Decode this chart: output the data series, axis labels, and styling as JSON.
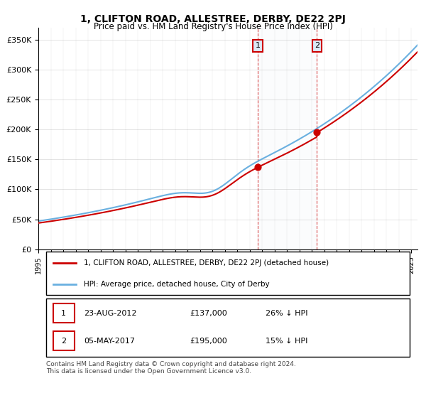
{
  "title": "1, CLIFTON ROAD, ALLESTREE, DERBY, DE22 2PJ",
  "subtitle": "Price paid vs. HM Land Registry's House Price Index (HPI)",
  "hpi_color": "#6ab0e0",
  "price_color": "#cc0000",
  "dot_color": "#cc0000",
  "marker_color": "#cc0000",
  "annotation_bg": "#dce9f5",
  "annotation_border": "#cc0000",
  "ylim": [
    0,
    370000
  ],
  "yticks": [
    0,
    50000,
    100000,
    150000,
    200000,
    250000,
    300000,
    350000
  ],
  "ytick_labels": [
    "£0",
    "£50K",
    "£100K",
    "£150K",
    "£200K",
    "£250K",
    "£300K",
    "£350K"
  ],
  "transaction1_date": "2012-08-23",
  "transaction1_price": 137000,
  "transaction1_label": "1",
  "transaction2_date": "2017-05-05",
  "transaction2_price": 195000,
  "transaction2_label": "2",
  "legend_line1": "1, CLIFTON ROAD, ALLESTREE, DERBY, DE22 2PJ (detached house)",
  "legend_line2": "HPI: Average price, detached house, City of Derby",
  "table_row1": "1    23-AUG-2012    £137,000    26% ↓ HPI",
  "table_row2": "2    05-MAY-2017    £195,000    15% ↓ HPI",
  "footer": "Contains HM Land Registry data © Crown copyright and database right 2024.\nThis data is licensed under the Open Government Licence v3.0.",
  "background_color": "#ffffff",
  "plot_bg": "#ffffff"
}
